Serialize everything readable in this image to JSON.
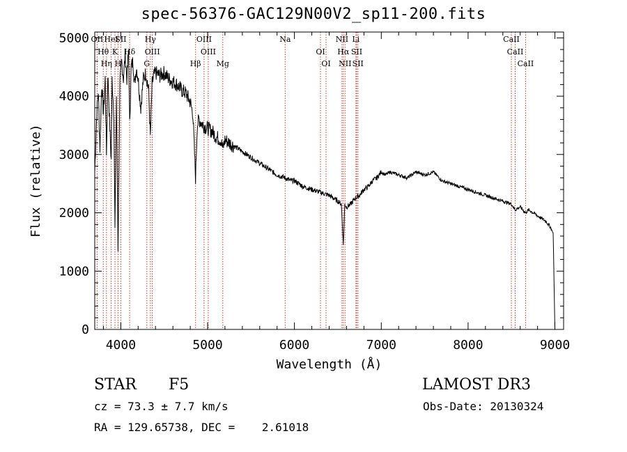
{
  "title": "spec-56376-GAC129N00V2_sp11-200.fits",
  "chart_data": {
    "type": "line",
    "title": "spec-56376-GAC129N00V2_sp11-200.fits",
    "xlabel": "Wavelength (Å)",
    "ylabel": "Flux (relative)",
    "xlim": [
      3700,
      9100
    ],
    "ylim": [
      0,
      5100
    ],
    "x_ticks": [
      4000,
      5000,
      6000,
      7000,
      8000,
      9000
    ],
    "x_tick_labels": [
      "4000",
      "5000",
      "6000",
      "7000",
      "8000",
      "9000"
    ],
    "y_ticks": [
      0,
      1000,
      2000,
      3000,
      4000,
      5000
    ],
    "y_tick_labels": [
      "0",
      "1000",
      "2000",
      "3000",
      "4000",
      "5000"
    ],
    "series": [
      {
        "name": "spectrum",
        "x": [
          3700,
          3720,
          3740,
          3760,
          3780,
          3800,
          3820,
          3835,
          3850,
          3870,
          3889,
          3900,
          3920,
          3933,
          3950,
          3968,
          3990,
          4010,
          4030,
          4050,
          4070,
          4090,
          4102,
          4120,
          4140,
          4160,
          4180,
          4200,
          4230,
          4260,
          4290,
          4320,
          4340,
          4360,
          4380,
          4400,
          4450,
          4500,
          4550,
          4600,
          4650,
          4700,
          4750,
          4800,
          4830,
          4861,
          4880,
          4900,
          4950,
          5000,
          5050,
          5100,
          5150,
          5175,
          5200,
          5300,
          5400,
          5500,
          5600,
          5700,
          5800,
          5893,
          5950,
          6000,
          6100,
          6200,
          6300,
          6400,
          6500,
          6540,
          6563,
          6580,
          6600,
          6650,
          6700,
          6750,
          6800,
          6850,
          6900,
          6950,
          7000,
          7050,
          7100,
          7200,
          7300,
          7400,
          7500,
          7600,
          7700,
          7800,
          7900,
          8000,
          8100,
          8200,
          8300,
          8400,
          8498,
          8542,
          8600,
          8662,
          8700,
          8800,
          8900,
          8950,
          8980,
          8990,
          9000
        ],
        "y": [
          2700,
          3600,
          4100,
          3100,
          4200,
          3700,
          4300,
          3000,
          4400,
          3600,
          2900,
          4300,
          3700,
          1700,
          4000,
          1400,
          4200,
          4600,
          4300,
          4700,
          4300,
          4800,
          3500,
          4500,
          4600,
          4200,
          4500,
          4300,
          3800,
          4300,
          4400,
          4100,
          3300,
          4200,
          4350,
          4400,
          4350,
          4400,
          4300,
          4250,
          4200,
          4100,
          4050,
          3900,
          3700,
          2600,
          3500,
          3600,
          3500,
          3450,
          3400,
          3300,
          3250,
          3100,
          3250,
          3150,
          3050,
          2950,
          2850,
          2750,
          2650,
          2600,
          2550,
          2550,
          2450,
          2400,
          2350,
          2300,
          2200,
          2150,
          1450,
          2150,
          2100,
          2150,
          2250,
          2300,
          2400,
          2450,
          2550,
          2600,
          2700,
          2650,
          2700,
          2650,
          2600,
          2700,
          2650,
          2700,
          2550,
          2500,
          2450,
          2400,
          2350,
          2300,
          2250,
          2200,
          2150,
          2050,
          2100,
          2000,
          2050,
          1950,
          1850,
          1750,
          1650,
          800,
          0
        ]
      }
    ],
    "line_markers": [
      {
        "wavelength": 3727,
        "label": "OII"
      },
      {
        "wavelength": 3798,
        "label": "Hθ"
      },
      {
        "wavelength": 3835,
        "label": "Hη"
      },
      {
        "wavelength": 3889,
        "label": "HeI"
      },
      {
        "wavelength": 3933,
        "label": "K"
      },
      {
        "wavelength": 3968,
        "label": "H"
      },
      {
        "wavelength": 4000,
        "label": "SII"
      },
      {
        "wavelength": 4102,
        "label": "Hδ"
      },
      {
        "wavelength": 4300,
        "label": "G"
      },
      {
        "wavelength": 4340,
        "label": "Hγ"
      },
      {
        "wavelength": 4363,
        "label": "OIII"
      },
      {
        "wavelength": 4861,
        "label": "Hβ"
      },
      {
        "wavelength": 4959,
        "label": "OIII"
      },
      {
        "wavelength": 5007,
        "label": "OIII"
      },
      {
        "wavelength": 5175,
        "label": "Mg"
      },
      {
        "wavelength": 5893,
        "label": "Na"
      },
      {
        "wavelength": 6300,
        "label": "OI"
      },
      {
        "wavelength": 6364,
        "label": "OI"
      },
      {
        "wavelength": 6548,
        "label": "NII"
      },
      {
        "wavelength": 6563,
        "label": "Hα"
      },
      {
        "wavelength": 6583,
        "label": "NII"
      },
      {
        "wavelength": 6708,
        "label": "Li"
      },
      {
        "wavelength": 6717,
        "label": "SII"
      },
      {
        "wavelength": 6731,
        "label": "SII"
      },
      {
        "wavelength": 8498,
        "label": "CaII"
      },
      {
        "wavelength": 8542,
        "label": "CaII"
      },
      {
        "wavelength": 8662,
        "label": "CaII"
      }
    ]
  },
  "info": {
    "object_class": "STAR",
    "subclass": "F5",
    "survey": "LAMOST DR3",
    "cz": "cz = 73.3 ± 7.7 km/s",
    "obs_date": "Obs-Date: 20130324",
    "coords": "RA = 129.65738, DEC =    2.61018"
  }
}
